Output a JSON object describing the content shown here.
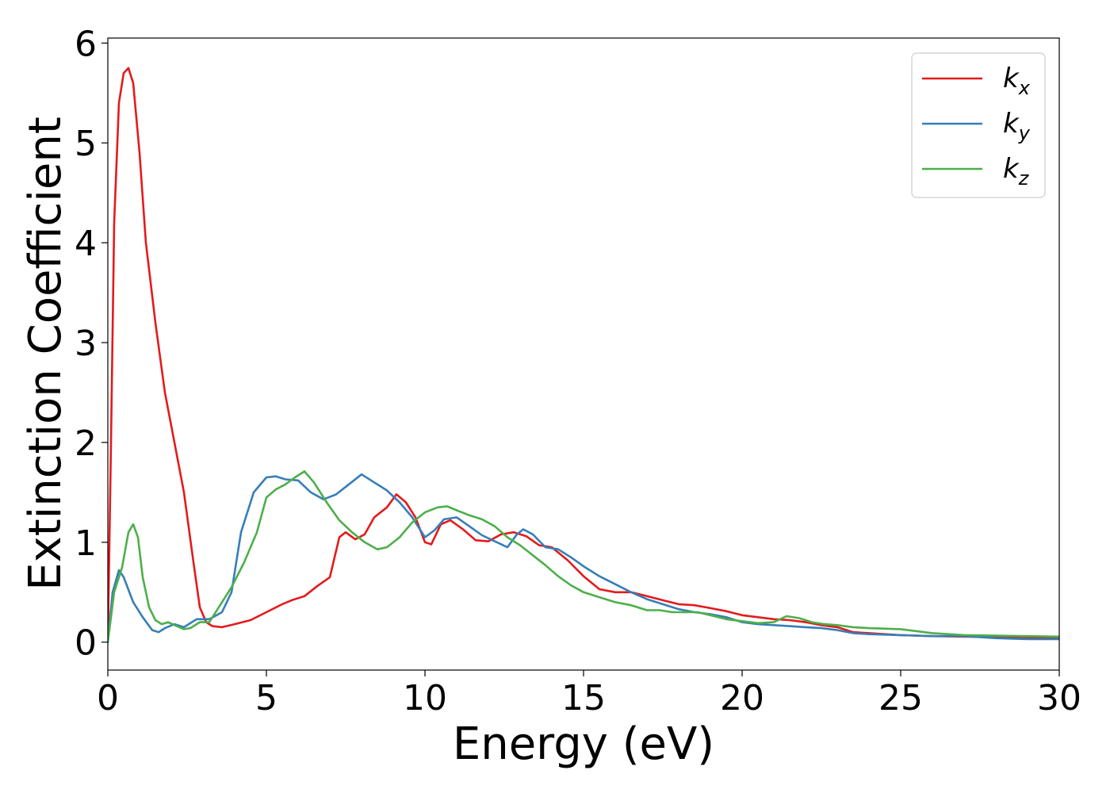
{
  "chart_data": {
    "type": "line",
    "xlabel": "Energy (eV)",
    "ylabel": "Extinction Coefficient",
    "xlim": [
      0,
      30
    ],
    "ylim": [
      -0.28,
      6.05
    ],
    "xticks": [
      "0",
      "5",
      "10",
      "15",
      "20",
      "25",
      "30"
    ],
    "yticks": [
      "0",
      "1",
      "2",
      "3",
      "4",
      "5",
      "6"
    ],
    "grid": false,
    "legend_position": "top-right",
    "series": [
      {
        "name": "k",
        "subscript": "x",
        "color": "#e41a1c",
        "points": [
          [
            0,
            0
          ],
          [
            0.1,
            2.0
          ],
          [
            0.2,
            4.2
          ],
          [
            0.35,
            5.4
          ],
          [
            0.5,
            5.7
          ],
          [
            0.65,
            5.75
          ],
          [
            0.8,
            5.6
          ],
          [
            1.0,
            4.9
          ],
          [
            1.2,
            4.0
          ],
          [
            1.5,
            3.2
          ],
          [
            1.8,
            2.5
          ],
          [
            2.1,
            2.0
          ],
          [
            2.4,
            1.5
          ],
          [
            2.7,
            0.8
          ],
          [
            2.9,
            0.35
          ],
          [
            3.1,
            0.2
          ],
          [
            3.3,
            0.16
          ],
          [
            3.6,
            0.15
          ],
          [
            4.0,
            0.18
          ],
          [
            4.5,
            0.22
          ],
          [
            5.0,
            0.3
          ],
          [
            5.5,
            0.38
          ],
          [
            5.8,
            0.42
          ],
          [
            6.2,
            0.46
          ],
          [
            6.6,
            0.56
          ],
          [
            7.0,
            0.65
          ],
          [
            7.3,
            1.05
          ],
          [
            7.5,
            1.1
          ],
          [
            7.8,
            1.03
          ],
          [
            8.1,
            1.08
          ],
          [
            8.4,
            1.25
          ],
          [
            8.8,
            1.35
          ],
          [
            9.1,
            1.48
          ],
          [
            9.4,
            1.4
          ],
          [
            9.7,
            1.25
          ],
          [
            10.0,
            1.0
          ],
          [
            10.2,
            0.98
          ],
          [
            10.5,
            1.18
          ],
          [
            10.8,
            1.22
          ],
          [
            11.2,
            1.13
          ],
          [
            11.6,
            1.02
          ],
          [
            12.0,
            1.01
          ],
          [
            12.4,
            1.08
          ],
          [
            12.8,
            1.1
          ],
          [
            13.2,
            1.06
          ],
          [
            13.6,
            0.97
          ],
          [
            14.0,
            0.95
          ],
          [
            14.5,
            0.82
          ],
          [
            15.0,
            0.66
          ],
          [
            15.5,
            0.53
          ],
          [
            16.0,
            0.5
          ],
          [
            16.5,
            0.5
          ],
          [
            17.0,
            0.46
          ],
          [
            17.5,
            0.42
          ],
          [
            18.0,
            0.38
          ],
          [
            18.5,
            0.37
          ],
          [
            19.0,
            0.34
          ],
          [
            19.5,
            0.31
          ],
          [
            20.0,
            0.27
          ],
          [
            20.5,
            0.25
          ],
          [
            21.0,
            0.23
          ],
          [
            21.5,
            0.22
          ],
          [
            22.0,
            0.2
          ],
          [
            22.5,
            0.17
          ],
          [
            23.0,
            0.15
          ],
          [
            23.5,
            0.1
          ],
          [
            24.0,
            0.09
          ],
          [
            25.0,
            0.07
          ],
          [
            26.0,
            0.06
          ],
          [
            27.0,
            0.055
          ],
          [
            28.0,
            0.05
          ],
          [
            29.0,
            0.04
          ],
          [
            30.0,
            0.04
          ]
        ]
      },
      {
        "name": "k",
        "subscript": "y",
        "color": "#377eb8",
        "points": [
          [
            0,
            0
          ],
          [
            0.15,
            0.5
          ],
          [
            0.35,
            0.72
          ],
          [
            0.5,
            0.65
          ],
          [
            0.8,
            0.4
          ],
          [
            1.1,
            0.25
          ],
          [
            1.4,
            0.12
          ],
          [
            1.6,
            0.1
          ],
          [
            1.8,
            0.14
          ],
          [
            2.1,
            0.18
          ],
          [
            2.4,
            0.15
          ],
          [
            2.8,
            0.23
          ],
          [
            3.2,
            0.23
          ],
          [
            3.6,
            0.3
          ],
          [
            3.9,
            0.5
          ],
          [
            4.2,
            1.1
          ],
          [
            4.6,
            1.5
          ],
          [
            5.0,
            1.65
          ],
          [
            5.3,
            1.66
          ],
          [
            5.6,
            1.63
          ],
          [
            6.0,
            1.62
          ],
          [
            6.4,
            1.5
          ],
          [
            6.8,
            1.43
          ],
          [
            7.2,
            1.48
          ],
          [
            7.6,
            1.58
          ],
          [
            8.0,
            1.68
          ],
          [
            8.4,
            1.6
          ],
          [
            8.8,
            1.52
          ],
          [
            9.2,
            1.4
          ],
          [
            9.6,
            1.25
          ],
          [
            10.0,
            1.05
          ],
          [
            10.3,
            1.12
          ],
          [
            10.6,
            1.23
          ],
          [
            11.0,
            1.25
          ],
          [
            11.4,
            1.16
          ],
          [
            11.8,
            1.07
          ],
          [
            12.2,
            1.01
          ],
          [
            12.6,
            0.95
          ],
          [
            12.9,
            1.08
          ],
          [
            13.1,
            1.13
          ],
          [
            13.4,
            1.08
          ],
          [
            13.8,
            0.95
          ],
          [
            14.2,
            0.93
          ],
          [
            14.6,
            0.85
          ],
          [
            15.0,
            0.76
          ],
          [
            15.5,
            0.66
          ],
          [
            16.0,
            0.58
          ],
          [
            16.5,
            0.5
          ],
          [
            17.0,
            0.43
          ],
          [
            17.5,
            0.38
          ],
          [
            18.0,
            0.33
          ],
          [
            18.5,
            0.3
          ],
          [
            19.0,
            0.28
          ],
          [
            19.5,
            0.25
          ],
          [
            20.0,
            0.2
          ],
          [
            20.5,
            0.18
          ],
          [
            21.0,
            0.17
          ],
          [
            21.5,
            0.16
          ],
          [
            22.0,
            0.15
          ],
          [
            22.5,
            0.14
          ],
          [
            23.0,
            0.12
          ],
          [
            23.5,
            0.09
          ],
          [
            24.0,
            0.08
          ],
          [
            25.0,
            0.07
          ],
          [
            26.0,
            0.06
          ],
          [
            27.0,
            0.06
          ],
          [
            28.0,
            0.04
          ],
          [
            29.0,
            0.03
          ],
          [
            30.0,
            0.03
          ]
        ]
      },
      {
        "name": "k",
        "subscript": "z",
        "color": "#4daf4a",
        "points": [
          [
            0,
            0
          ],
          [
            0.2,
            0.5
          ],
          [
            0.45,
            0.75
          ],
          [
            0.65,
            1.1
          ],
          [
            0.8,
            1.18
          ],
          [
            0.95,
            1.05
          ],
          [
            1.1,
            0.65
          ],
          [
            1.3,
            0.35
          ],
          [
            1.5,
            0.22
          ],
          [
            1.7,
            0.18
          ],
          [
            1.9,
            0.2
          ],
          [
            2.1,
            0.17
          ],
          [
            2.4,
            0.13
          ],
          [
            2.6,
            0.14
          ],
          [
            2.9,
            0.2
          ],
          [
            3.2,
            0.2
          ],
          [
            3.5,
            0.35
          ],
          [
            3.9,
            0.55
          ],
          [
            4.3,
            0.8
          ],
          [
            4.7,
            1.1
          ],
          [
            5.0,
            1.45
          ],
          [
            5.3,
            1.53
          ],
          [
            5.6,
            1.58
          ],
          [
            5.9,
            1.65
          ],
          [
            6.2,
            1.71
          ],
          [
            6.5,
            1.6
          ],
          [
            6.9,
            1.4
          ],
          [
            7.3,
            1.22
          ],
          [
            7.7,
            1.1
          ],
          [
            8.1,
            1.0
          ],
          [
            8.5,
            0.93
          ],
          [
            8.8,
            0.95
          ],
          [
            9.2,
            1.05
          ],
          [
            9.6,
            1.2
          ],
          [
            10.0,
            1.3
          ],
          [
            10.4,
            1.35
          ],
          [
            10.7,
            1.36
          ],
          [
            11.0,
            1.32
          ],
          [
            11.4,
            1.27
          ],
          [
            11.8,
            1.23
          ],
          [
            12.2,
            1.16
          ],
          [
            12.6,
            1.05
          ],
          [
            13.0,
            0.97
          ],
          [
            13.4,
            0.87
          ],
          [
            13.8,
            0.77
          ],
          [
            14.2,
            0.66
          ],
          [
            14.6,
            0.57
          ],
          [
            15.0,
            0.5
          ],
          [
            15.5,
            0.45
          ],
          [
            16.0,
            0.4
          ],
          [
            16.5,
            0.37
          ],
          [
            17.0,
            0.32
          ],
          [
            17.4,
            0.32
          ],
          [
            17.8,
            0.3
          ],
          [
            18.2,
            0.3
          ],
          [
            18.6,
            0.3
          ],
          [
            19.0,
            0.27
          ],
          [
            19.5,
            0.23
          ],
          [
            20.0,
            0.21
          ],
          [
            20.5,
            0.19
          ],
          [
            21.0,
            0.2
          ],
          [
            21.4,
            0.26
          ],
          [
            21.8,
            0.24
          ],
          [
            22.2,
            0.2
          ],
          [
            22.6,
            0.18
          ],
          [
            23.0,
            0.17
          ],
          [
            23.5,
            0.15
          ],
          [
            24.0,
            0.14
          ],
          [
            25.0,
            0.13
          ],
          [
            26.0,
            0.09
          ],
          [
            27.0,
            0.07
          ],
          [
            28.0,
            0.065
          ],
          [
            29.0,
            0.06
          ],
          [
            30.0,
            0.055
          ]
        ]
      }
    ]
  }
}
